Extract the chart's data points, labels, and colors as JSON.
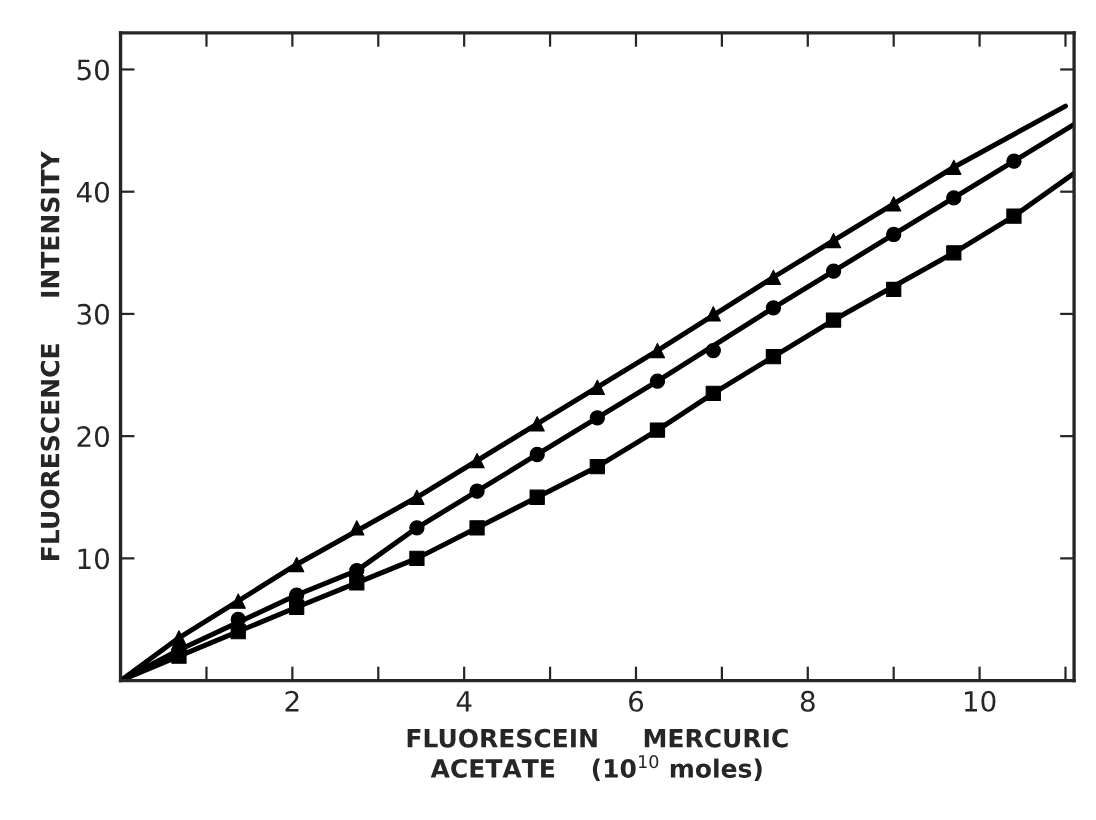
{
  "chart_data": {
    "type": "scatter",
    "xlabel": "FLUORESCEIN     MERCURIC\nACETATE    (10$^{10}$ moles)",
    "ylabel": "FLUORESCENCE     INTENSITY",
    "xlim": [
      0,
      11.1
    ],
    "ylim": [
      0,
      53
    ],
    "xticks": [
      {
        "value": 1,
        "label": null
      },
      2,
      {
        "value": 3,
        "label": null
      },
      4,
      {
        "value": 5,
        "label": null
      },
      6,
      {
        "value": 7,
        "label": null
      },
      8,
      {
        "value": 9,
        "label": null
      },
      10,
      {
        "value": 11,
        "label": null
      }
    ],
    "yticks": [
      10,
      20,
      30,
      40,
      50
    ],
    "grid": false,
    "legend": false,
    "series": [
      {
        "marker": "triangle",
        "color": "#000000",
        "x": [
          0.68,
          1.37,
          2.05,
          2.75,
          3.45,
          4.15,
          4.85,
          5.55,
          6.25,
          6.9,
          7.6,
          8.3,
          9.0,
          9.7
        ],
        "values": [
          3.5,
          6.5,
          9.5,
          12.5,
          15,
          18,
          21,
          24,
          27,
          30,
          33,
          36,
          39,
          42
        ]
      },
      {
        "marker": "circle",
        "color": "#000000",
        "x": [
          0.68,
          1.37,
          2.05,
          2.75,
          3.45,
          4.15,
          4.85,
          5.55,
          6.25,
          6.9,
          7.6,
          8.3,
          9.0,
          9.7,
          10.4
        ],
        "values": [
          2.5,
          5,
          7,
          9,
          12.5,
          15.5,
          18.5,
          21.5,
          24.5,
          27,
          30.5,
          33.5,
          36.5,
          39.5,
          42.5
        ]
      },
      {
        "marker": "square",
        "color": "#000000",
        "x": [
          0.68,
          1.37,
          2.05,
          2.75,
          3.45,
          4.15,
          4.85,
          5.55,
          6.25,
          6.9,
          7.6,
          8.3,
          9.0,
          9.7,
          10.4
        ],
        "values": [
          2,
          4,
          6,
          8,
          10,
          12.5,
          15,
          17.5,
          20.5,
          23.5,
          26.5,
          29.5,
          32,
          35,
          38
        ]
      },
      {
        "type": "line",
        "marker": "none",
        "line_style": "solid",
        "color": "#000000",
        "x": [
          0,
          0.68,
          2.05,
          3.45,
          4.85,
          6.25,
          7.6,
          9.0,
          9.7,
          11.0
        ],
        "values": [
          0,
          3.5,
          9.5,
          15,
          21,
          27,
          33,
          39,
          42,
          47
        ]
      },
      {
        "type": "line",
        "marker": "none",
        "line_style": "solid",
        "color": "#000000",
        "x": [
          0,
          0.68,
          2.05,
          2.75,
          3.45,
          4.85,
          6.25,
          7.6,
          9.0,
          10.4,
          11.1
        ],
        "values": [
          0,
          2.5,
          7,
          9,
          12.5,
          18.5,
          24.5,
          30.5,
          36.5,
          42.5,
          45.5
        ]
      },
      {
        "type": "line",
        "marker": "none",
        "line_style": "solid",
        "color": "#000000",
        "x": [
          0,
          0.68,
          2.05,
          2.75,
          3.45,
          4.85,
          5.55,
          6.25,
          6.9,
          8.3,
          9.7,
          10.4,
          11.1
        ],
        "values": [
          0,
          2,
          6,
          8,
          10,
          15,
          17.5,
          20.5,
          23.5,
          29.5,
          35,
          38,
          41.5
        ]
      }
    ]
  }
}
